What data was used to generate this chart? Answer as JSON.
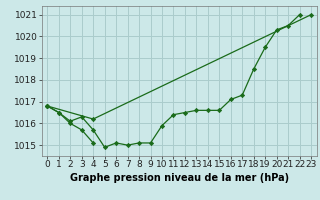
{
  "xlabel": "Graphe pression niveau de la mer (hPa)",
  "bg_color": "#cce8e8",
  "grid_color": "#aacccc",
  "line_color": "#1a6b1a",
  "marker_color": "#1a6b1a",
  "hours": [
    0,
    1,
    2,
    3,
    4,
    5,
    6,
    7,
    8,
    9,
    10,
    11,
    12,
    13,
    14,
    15,
    16,
    17,
    18,
    19,
    20,
    21,
    22,
    23
  ],
  "line1": [
    1016.8,
    1016.5,
    1016.1,
    1016.3,
    1015.7,
    1014.9,
    1015.1,
    1015.0,
    1015.1,
    1015.1,
    1015.9,
    1016.4,
    1016.5,
    1016.6,
    1016.6,
    1016.6,
    1017.1,
    1017.3,
    1018.5,
    1019.5,
    1020.3,
    1020.5,
    1021.0,
    null
  ],
  "line2": [
    1016.8,
    1016.5,
    1016.0,
    1015.7,
    1015.1,
    null,
    null,
    null,
    null,
    null,
    null,
    null,
    null,
    null,
    null,
    null,
    null,
    null,
    null,
    null,
    null,
    null,
    null,
    null
  ],
  "line3": [
    1016.8,
    null,
    null,
    null,
    1016.2,
    null,
    null,
    null,
    null,
    null,
    null,
    null,
    null,
    null,
    null,
    null,
    null,
    null,
    null,
    null,
    null,
    null,
    null,
    1021.0
  ],
  "ylim": [
    1014.5,
    1021.4
  ],
  "yticks": [
    1015,
    1016,
    1017,
    1018,
    1019,
    1020,
    1021
  ],
  "tick_fontsize": 6.5,
  "label_fontsize": 7.0,
  "figsize": [
    3.2,
    2.0
  ],
  "dpi": 100
}
